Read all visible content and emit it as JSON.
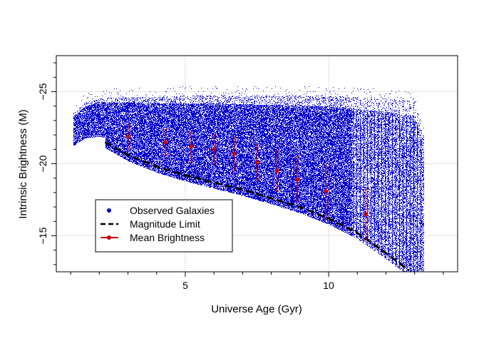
{
  "chart_data": {
    "type": "scatter",
    "title": "",
    "xlabel": "Universe Age (Gyr)",
    "ylabel": "Intrinsic Brightness (M)",
    "xlim": [
      0.5,
      14.5
    ],
    "ylim": [
      -12.5,
      -27.5
    ],
    "x_ticks": [
      5,
      10
    ],
    "x_tick_labels": [
      "5",
      "10"
    ],
    "y_ticks": [
      -25,
      -20,
      -15
    ],
    "y_tick_labels": [
      "−25",
      "−20",
      "−15"
    ],
    "y_axis_inverted": true,
    "grid": true,
    "legend_position": "bottom-left",
    "legend": [
      {
        "label": "Observed Galaxies",
        "marker": "point",
        "color": "#0000cc"
      },
      {
        "label": "Magnitude Limit",
        "marker": "dashed-line",
        "color": "#000000"
      },
      {
        "label": "Mean Brightness",
        "marker": "line-point",
        "color": "#cc0000"
      }
    ],
    "series": [
      {
        "name": "Observed Galaxies",
        "kind": "dense-scatter",
        "color": "#0000cc",
        "note": "dense cloud of points between the magnitude limit and roughly M = -24.5",
        "upper_envelope": {
          "x": [
            1.1,
            1.5,
            2.0,
            3.0,
            4.0,
            5.0,
            6.0,
            7.0,
            8.0,
            9.0,
            10.0,
            11.0,
            12.0,
            13.0,
            13.3
          ],
          "y": [
            -23.5,
            -24.2,
            -24.5,
            -24.6,
            -24.6,
            -24.7,
            -24.7,
            -24.7,
            -24.7,
            -24.7,
            -24.7,
            -24.6,
            -24.5,
            -24.3,
            -22.0
          ]
        }
      },
      {
        "name": "Magnitude Limit",
        "kind": "dashed-line",
        "color": "#000000",
        "x": [
          2.2,
          3.0,
          4.0,
          5.0,
          6.0,
          7.0,
          8.0,
          9.0,
          10.0,
          11.0,
          12.0,
          12.8
        ],
        "y": [
          -21.5,
          -20.6,
          -19.8,
          -19.2,
          -18.7,
          -18.2,
          -17.6,
          -17.0,
          -16.2,
          -15.2,
          -13.8,
          -12.6
        ]
      },
      {
        "name": "Mean Brightness",
        "kind": "points-with-errorbars",
        "color": "#cc0000",
        "x": [
          3.0,
          4.3,
          5.2,
          6.0,
          6.7,
          7.5,
          8.2,
          8.9,
          9.9,
          11.3
        ],
        "y": [
          -21.9,
          -21.5,
          -21.2,
          -21.0,
          -20.7,
          -20.1,
          -19.5,
          -18.9,
          -18.1,
          -16.5
        ],
        "err_low": [
          -21.0,
          -20.6,
          -20.1,
          -19.9,
          -19.5,
          -18.9,
          -18.1,
          -17.4,
          -16.2,
          -14.7
        ],
        "err_high": [
          -22.7,
          -22.4,
          -22.2,
          -22.0,
          -21.8,
          -21.3,
          -20.9,
          -20.5,
          -19.9,
          -18.2
        ]
      }
    ]
  }
}
